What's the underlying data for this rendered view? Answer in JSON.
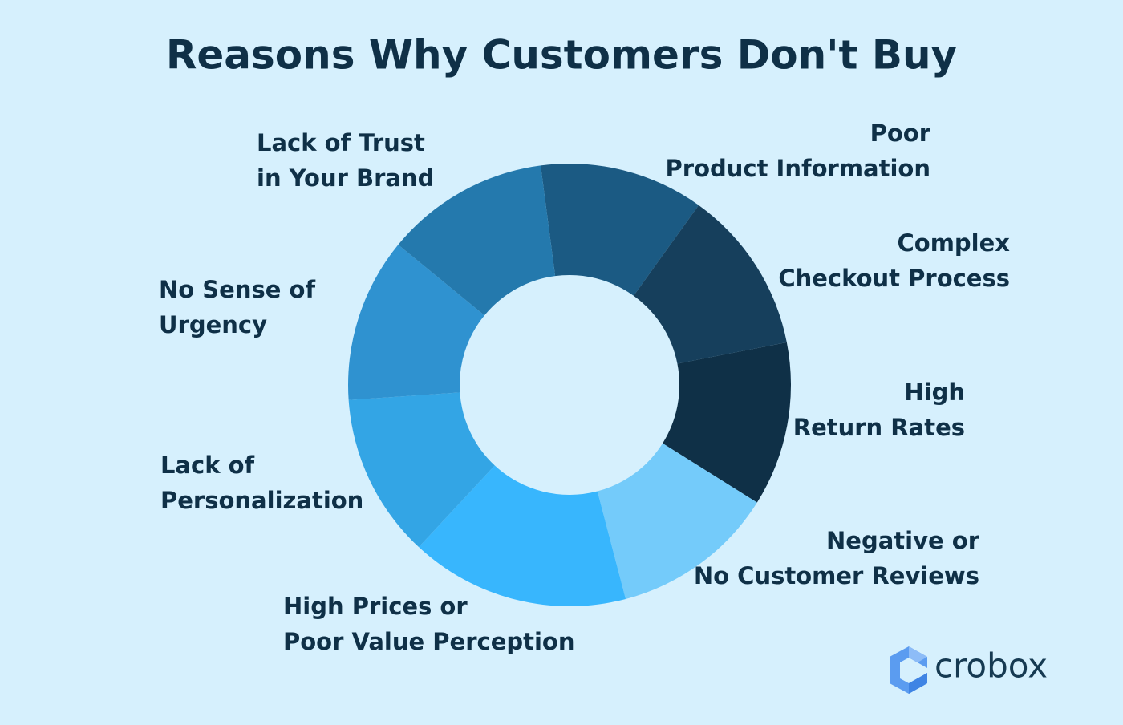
{
  "chart_data": {
    "type": "donut",
    "title": "Reasons Why Customers Don't Buy",
    "categories": [
      [
        "Poor",
        "Product Information"
      ],
      [
        "Complex",
        "Checkout Process"
      ],
      [
        "High",
        "Return Rates"
      ],
      [
        "Negative or",
        "No Customer Reviews"
      ],
      [
        "High Prices or",
        "Poor Value Perception"
      ],
      [
        "Lack of",
        "Personalization"
      ],
      [
        "No Sense of",
        "Urgency"
      ],
      [
        "Lack of Trust",
        "in Your Brand"
      ]
    ],
    "values": [
      12,
      12,
      12,
      12,
      16,
      12,
      12,
      12
    ],
    "colors": [
      "#1b5a83",
      "#163f5c",
      "#0f3047",
      "#74cbfa",
      "#38b6fd",
      "#33a5e5",
      "#2f92d0",
      "#2479ad"
    ]
  },
  "brand": "crobox"
}
